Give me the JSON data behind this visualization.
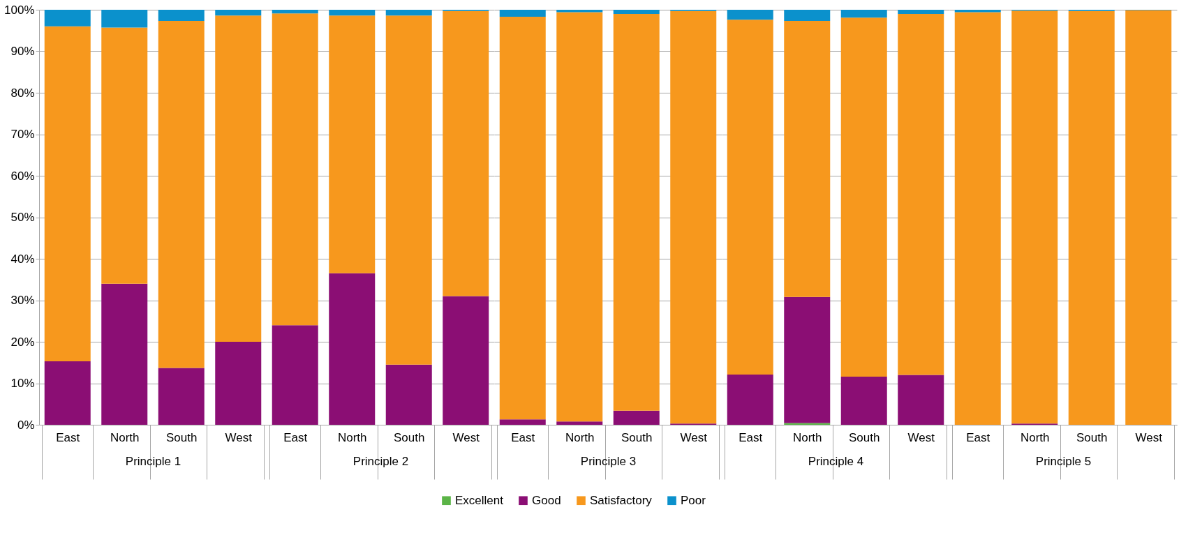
{
  "chart_data": [
    {
      "type": "bar",
      "stacked": true,
      "xlabel": "Principle 1",
      "categories": [
        "East",
        "North",
        "South",
        "West"
      ],
      "ylim": [
        0,
        100
      ],
      "yticks": [
        {
          "value": 0,
          "label": "0%"
        },
        {
          "value": 10,
          "label": "10%"
        },
        {
          "value": 20,
          "label": "20%"
        },
        {
          "value": 30,
          "label": "30%"
        },
        {
          "value": 40,
          "label": "40%"
        },
        {
          "value": 50,
          "label": "50%"
        },
        {
          "value": 60,
          "label": "60%"
        },
        {
          "value": 70,
          "label": "70%"
        },
        {
          "value": 80,
          "label": "80%"
        },
        {
          "value": 90,
          "label": "90%"
        },
        {
          "value": 100,
          "label": "100%"
        }
      ],
      "grid": "y",
      "legend": "bottom",
      "series": [
        {
          "name": "Excellent",
          "color": "#5bb447",
          "values": [
            0,
            0,
            0,
            0
          ]
        },
        {
          "name": "Good",
          "color": "#8b0e74",
          "values": [
            15.3,
            34,
            13.7,
            20
          ]
        },
        {
          "name": "Satisfactory",
          "color": "#f7981d",
          "values": [
            80.7,
            61.7,
            83.6,
            78.6
          ]
        },
        {
          "name": "Poor",
          "color": "#0b91cc",
          "values": [
            4.0,
            4.3,
            2.7,
            1.4
          ]
        }
      ]
    },
    {
      "type": "bar",
      "stacked": true,
      "xlabel": "Principle 2",
      "categories": [
        "East",
        "North",
        "South",
        "West"
      ],
      "ylim": [
        0,
        100
      ],
      "yticks": [
        0,
        10,
        20,
        30,
        40,
        50,
        60,
        70,
        80,
        90,
        100
      ],
      "grid": "y",
      "tick_labels": "x",
      "series": [
        {
          "color": "#5bb447",
          "values": [
            0,
            0,
            0,
            0
          ]
        },
        {
          "color": "#8b0e74",
          "values": [
            24,
            36.5,
            14.5,
            31
          ]
        },
        {
          "color": "#f7981d",
          "values": [
            75.1,
            62.1,
            84.1,
            68.7
          ]
        },
        {
          "color": "#0b91cc",
          "values": [
            0.9,
            1.4,
            1.4,
            0.3
          ]
        }
      ]
    },
    {
      "type": "bar",
      "stacked": true,
      "xlabel": "Principle 3",
      "categories": [
        "East",
        "North",
        "South",
        "West"
      ],
      "ylim": [
        0,
        100
      ],
      "yticks": [
        0,
        10,
        20,
        30,
        40,
        50,
        60,
        70,
        80,
        90,
        100
      ],
      "grid": "y",
      "tick_labels": "x",
      "series": [
        {
          "color": "#5bb447",
          "values": [
            0,
            0,
            0,
            0
          ]
        },
        {
          "color": "#8b0e74",
          "values": [
            1.3,
            0.8,
            3.4,
            0.3
          ]
        },
        {
          "color": "#f7981d",
          "values": [
            97.0,
            98.6,
            95.6,
            99.4
          ]
        },
        {
          "color": "#0b91cc",
          "values": [
            1.7,
            0.6,
            1.0,
            0.3
          ]
        }
      ]
    },
    {
      "type": "bar",
      "stacked": true,
      "xlabel": "Principle 4",
      "categories": [
        "East",
        "North",
        "South",
        "West"
      ],
      "ylim": [
        0,
        100
      ],
      "yticks": [
        0,
        10,
        20,
        30,
        40,
        50,
        60,
        70,
        80,
        90,
        100
      ],
      "grid": "y",
      "tick_labels": "x",
      "series": [
        {
          "color": "#5bb447",
          "values": [
            0,
            0.4,
            0,
            0
          ]
        },
        {
          "color": "#8b0e74",
          "values": [
            12.1,
            30.4,
            11.6,
            12
          ]
        },
        {
          "color": "#f7981d",
          "values": [
            85.5,
            66.5,
            86.5,
            87
          ]
        },
        {
          "color": "#0b91cc",
          "values": [
            2.4,
            2.7,
            1.9,
            1.0
          ]
        }
      ]
    },
    {
      "type": "bar",
      "stacked": true,
      "xlabel": "Principle 5",
      "categories": [
        "East",
        "North",
        "South",
        "West"
      ],
      "ylim": [
        0,
        100
      ],
      "yticks": [
        0,
        10,
        20,
        30,
        40,
        50,
        60,
        70,
        80,
        90,
        100
      ],
      "grid": "y",
      "tick_labels": "x",
      "series": [
        {
          "color": "#5bb447",
          "values": [
            0,
            0,
            0,
            0
          ]
        },
        {
          "color": "#8b0e74",
          "values": [
            0,
            0.3,
            0,
            0
          ]
        },
        {
          "color": "#f7981d",
          "values": [
            99.4,
            99.5,
            99.7,
            99.9
          ]
        },
        {
          "color": "#0b91cc",
          "values": [
            0.6,
            0.2,
            0.3,
            0.1
          ]
        }
      ]
    }
  ]
}
